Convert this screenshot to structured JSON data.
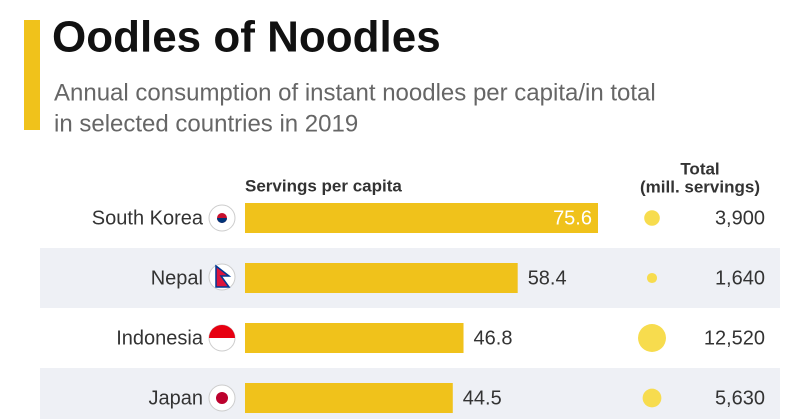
{
  "chart_data": {
    "type": "bar",
    "title": "Oodles of Noodles",
    "subtitle": [
      "Annual consumption of instant noodles per capita/in total",
      "in selected countries in 2019"
    ],
    "x_label": "Servings per capita",
    "total_label": [
      "Total",
      "(mill. servings)"
    ],
    "categories": [
      "South Korea",
      "Nepal",
      "Indonesia",
      "Japan"
    ],
    "values": [
      75.6,
      58.4,
      46.8,
      44.5
    ],
    "color": "#f0c21b",
    "totals": [
      3900,
      1640,
      12520,
      5630
    ],
    "total_labels": [
      "3,900",
      "1,640",
      "12,520",
      "5,630"
    ],
    "total_color": "#f7dc4e"
  }
}
